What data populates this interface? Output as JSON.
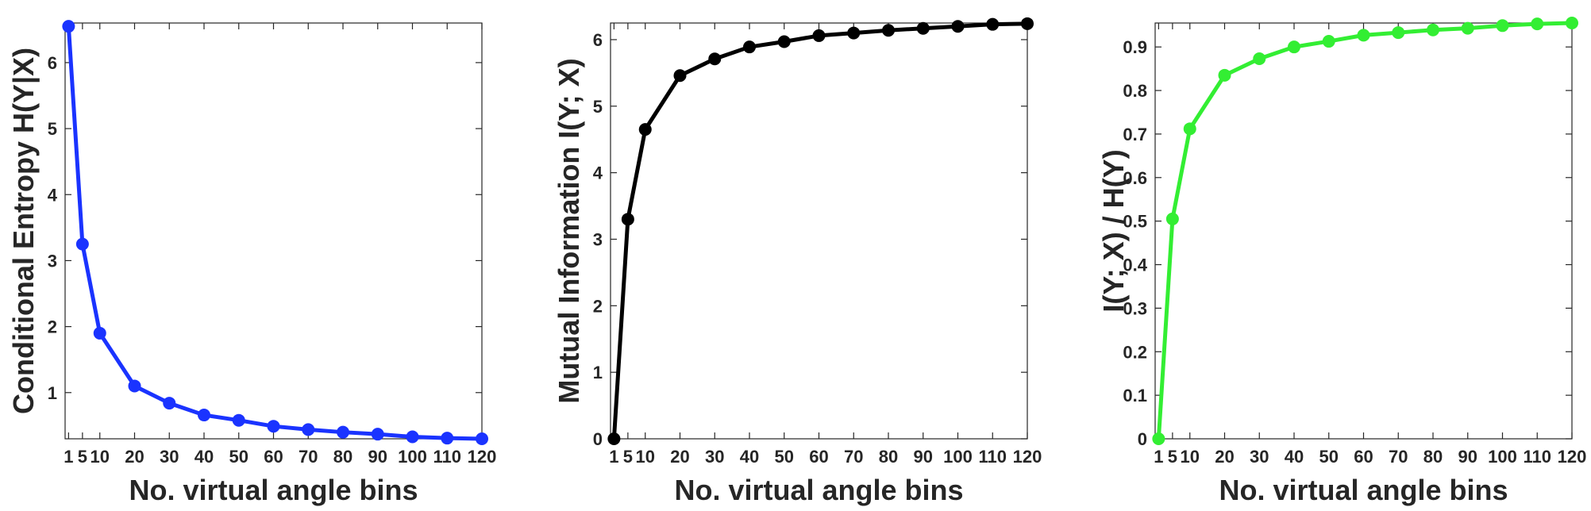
{
  "chart_data": [
    {
      "type": "line",
      "title": "",
      "xlabel": "No. virtual angle bins",
      "ylabel": "Conditional Entropy H(Y|X)",
      "x": [
        1,
        5,
        10,
        20,
        30,
        40,
        50,
        60,
        70,
        80,
        90,
        100,
        110,
        120
      ],
      "xticks": [
        1,
        5,
        10,
        20,
        30,
        40,
        50,
        60,
        70,
        80,
        90,
        100,
        110,
        120
      ],
      "xlim": [
        0,
        120
      ],
      "yticks": [
        1,
        2,
        3,
        4,
        5,
        6
      ],
      "ylim": [
        0.3,
        6.6
      ],
      "grid": false,
      "color": "#1a33ff",
      "series": [
        {
          "values": [
            6.55,
            3.25,
            1.9,
            1.1,
            0.84,
            0.66,
            0.58,
            0.49,
            0.44,
            0.4,
            0.37,
            0.33,
            0.31,
            0.3
          ]
        }
      ]
    },
    {
      "type": "line",
      "title": "",
      "xlabel": "No. virtual angle bins",
      "ylabel": "Mutual Information I(Y; X)",
      "x": [
        1,
        5,
        10,
        20,
        30,
        40,
        50,
        60,
        70,
        80,
        90,
        100,
        110,
        120
      ],
      "xticks": [
        1,
        5,
        10,
        20,
        30,
        40,
        50,
        60,
        70,
        80,
        90,
        100,
        110,
        120
      ],
      "xlim": [
        0,
        120
      ],
      "yticks": [
        0,
        1,
        2,
        3,
        4,
        5,
        6
      ],
      "ylim": [
        0,
        6.25
      ],
      "grid": false,
      "color": "#000000",
      "series": [
        {
          "values": [
            0,
            3.3,
            4.65,
            5.46,
            5.71,
            5.89,
            5.97,
            6.06,
            6.1,
            6.14,
            6.17,
            6.2,
            6.23,
            6.24
          ]
        }
      ]
    },
    {
      "type": "line",
      "title": "",
      "xlabel": "No. virtual angle bins",
      "ylabel": "I(Y; X) / H(Y)",
      "x": [
        1,
        5,
        10,
        20,
        30,
        40,
        50,
        60,
        70,
        80,
        90,
        100,
        110,
        120
      ],
      "xticks": [
        1,
        5,
        10,
        20,
        30,
        40,
        50,
        60,
        70,
        80,
        90,
        100,
        110,
        120
      ],
      "xlim": [
        0,
        120
      ],
      "yticks": [
        0,
        0.1,
        0.2,
        0.3,
        0.4,
        0.5,
        0.6,
        0.7,
        0.8,
        0.9
      ],
      "ylim": [
        0,
        0.955
      ],
      "grid": false,
      "color": "#33ee33",
      "series": [
        {
          "values": [
            0,
            0.505,
            0.712,
            0.835,
            0.873,
            0.9,
            0.913,
            0.927,
            0.933,
            0.939,
            0.943,
            0.949,
            0.953,
            0.955
          ]
        }
      ]
    }
  ]
}
